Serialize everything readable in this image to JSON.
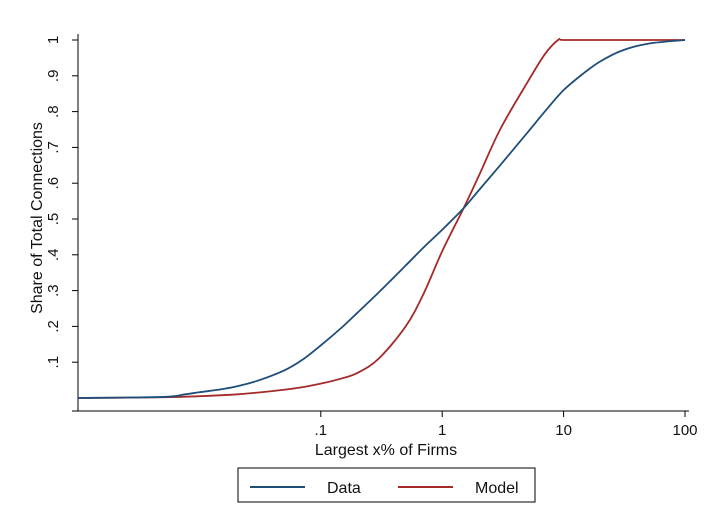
{
  "chart_data": {
    "type": "line",
    "xlabel": "Largest x% of Firms",
    "ylabel": "Share of Total Connections",
    "x_scale": "log",
    "xlim": [
      0.001,
      100
    ],
    "ylim": [
      0,
      1
    ],
    "grid": false,
    "legend_position": "bottom",
    "x_ticks": [
      {
        "value": 0.1,
        "label": ".1"
      },
      {
        "value": 1,
        "label": "1"
      },
      {
        "value": 10,
        "label": "10"
      },
      {
        "value": 100,
        "label": "100"
      }
    ],
    "y_ticks": [
      {
        "value": 0.1,
        "label": ".1"
      },
      {
        "value": 0.2,
        "label": ".2"
      },
      {
        "value": 0.3,
        "label": ".3"
      },
      {
        "value": 0.4,
        "label": ".4"
      },
      {
        "value": 0.5,
        "label": ".5"
      },
      {
        "value": 0.6,
        "label": ".6"
      },
      {
        "value": 0.7,
        "label": ".7"
      },
      {
        "value": 0.8,
        "label": ".8"
      },
      {
        "value": 0.9,
        "label": ".9"
      },
      {
        "value": 1,
        "label": "1"
      }
    ],
    "series": [
      {
        "name": "Data",
        "color": "#1f4e79",
        "x": [
          0.001,
          0.005,
          0.0075,
          0.01,
          0.015,
          0.02,
          0.03,
          0.05,
          0.07,
          0.1,
          0.15,
          0.2,
          0.3,
          0.5,
          0.7,
          1,
          1.5,
          2,
          3,
          5,
          7,
          10,
          15,
          20,
          30,
          50,
          100
        ],
        "y": [
          0,
          0.003,
          0.01,
          0.016,
          0.024,
          0.032,
          0.048,
          0.077,
          0.106,
          0.147,
          0.198,
          0.238,
          0.295,
          0.37,
          0.42,
          0.47,
          0.53,
          0.58,
          0.65,
          0.74,
          0.8,
          0.86,
          0.91,
          0.94,
          0.97,
          0.99,
          1.0
        ]
      },
      {
        "name": "Model",
        "color": "#a52a2a",
        "x": [
          0.001,
          0.005,
          0.01,
          0.02,
          0.03,
          0.05,
          0.07,
          0.1,
          0.15,
          0.2,
          0.3,
          0.5,
          0.7,
          1,
          1.5,
          2,
          3,
          5,
          7,
          9,
          10,
          20,
          50,
          100
        ],
        "y": [
          0,
          0.002,
          0.005,
          0.01,
          0.015,
          0.023,
          0.03,
          0.04,
          0.055,
          0.07,
          0.11,
          0.2,
          0.29,
          0.41,
          0.53,
          0.62,
          0.75,
          0.88,
          0.96,
          1.0,
          1.0,
          1.0,
          1.0,
          1.0
        ]
      }
    ]
  }
}
